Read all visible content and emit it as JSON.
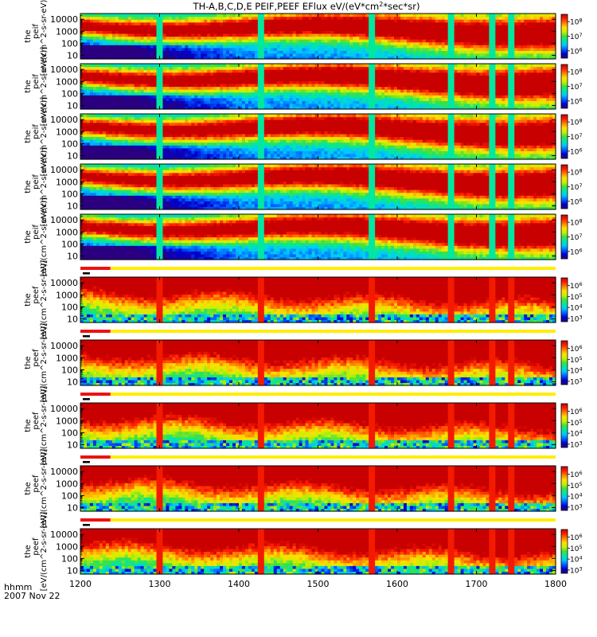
{
  "chart_data": {
    "type": "heatmap",
    "title": "TH-A,B,C,D,E  PEIF,PEEF  EFlux  eV/(eV*cm",
    "title_sup": "2",
    "title_tail": "*sec*sr)",
    "x": {
      "min": 1200,
      "max": 1800,
      "ticks": [
        1200,
        1300,
        1400,
        1500,
        1600,
        1700,
        1800
      ],
      "tick_labels": [
        "1200",
        "1300",
        "1400",
        "1500",
        "1600",
        "1700",
        "1800"
      ],
      "footer_label": "hhmm",
      "date_label": "2007 Nov 22"
    },
    "y": {
      "scale": "log",
      "range": [
        5,
        30000
      ],
      "ticks": [
        10,
        100,
        1000,
        10000
      ],
      "tick_labels": [
        "10",
        "100",
        "1000",
        "10000"
      ]
    },
    "panels": [
      {
        "species": "ion",
        "ylabel_line1": "the",
        "ylabel_line2": "peif",
        "ylabel_units": "[eV/(cm^2-s-sr-eV)]",
        "colorbar": {
          "exponents": [
            "8",
            "7",
            "6"
          ],
          "low_exp": 5.5,
          "high_exp": 8.5
        }
      },
      {
        "species": "ion",
        "ylabel_line1": "the",
        "ylabel_line2": "peif",
        "ylabel_units": "[eV/(cm^2-s-sr-eV)]",
        "colorbar": {
          "exponents": [
            "8",
            "7",
            "6"
          ],
          "low_exp": 5.5,
          "high_exp": 8.5
        }
      },
      {
        "species": "ion",
        "ylabel_line1": "the",
        "ylabel_line2": "peif",
        "ylabel_units": "[eV/(cm^2-s-sr-eV)]",
        "colorbar": {
          "exponents": [
            "8",
            "7",
            "6"
          ],
          "low_exp": 5.5,
          "high_exp": 8.5
        }
      },
      {
        "species": "ion",
        "ylabel_line1": "the",
        "ylabel_line2": "peif",
        "ylabel_units": "[eV/(cm^2-s-sr-eV)]",
        "colorbar": {
          "exponents": [
            "8",
            "7",
            "6"
          ],
          "low_exp": 5.5,
          "high_exp": 8.5
        }
      },
      {
        "species": "ion",
        "ylabel_line1": "the",
        "ylabel_line2": "peif",
        "ylabel_units": "[eV/(cm^2-s-sr-eV)]",
        "colorbar": {
          "exponents": [
            "8",
            "7",
            "6"
          ],
          "low_exp": 5.5,
          "high_exp": 8.5
        }
      },
      {
        "species": "electron",
        "ylabel_line1": "the",
        "ylabel_line2": "peef",
        "ylabel_units": "[eV/(cm^2-s-sr-eV)]",
        "colorbar": {
          "exponents": [
            "6",
            "5",
            "4",
            "3"
          ],
          "low_exp": 2.7,
          "high_exp": 6.7
        }
      },
      {
        "species": "electron",
        "ylabel_line1": "the",
        "ylabel_line2": "peef",
        "ylabel_units": "[eV/(cm^2-s-sr-eV)]",
        "colorbar": {
          "exponents": [
            "6",
            "5",
            "4",
            "3"
          ],
          "low_exp": 2.7,
          "high_exp": 6.7
        }
      },
      {
        "species": "electron",
        "ylabel_line1": "the",
        "ylabel_line2": "peef",
        "ylabel_units": "[eV/(cm^2-s-sr-eV)]",
        "colorbar": {
          "exponents": [
            "6",
            "5",
            "4",
            "3"
          ],
          "low_exp": 2.7,
          "high_exp": 6.7
        }
      },
      {
        "species": "electron",
        "ylabel_line1": "the",
        "ylabel_line2": "peef",
        "ylabel_units": "[eV/(cm^2-s-sr-eV)]",
        "colorbar": {
          "exponents": [
            "6",
            "5",
            "4",
            "3"
          ],
          "low_exp": 2.7,
          "high_exp": 6.7
        }
      },
      {
        "species": "electron",
        "ylabel_line1": "the",
        "ylabel_line2": "peef",
        "ylabel_units": "[eV/(cm^2-s-sr-eV)]",
        "colorbar": {
          "exponents": [
            "6",
            "5",
            "4",
            "3"
          ],
          "low_exp": 2.7,
          "high_exp": 6.7
        }
      }
    ],
    "mode_bars": {
      "red_start": 1200,
      "red_end": 1238,
      "black_start": 1203,
      "black_end": 1212,
      "yellow_start": 1238,
      "yellow_end": 1800
    },
    "data_gaps": [
      1300,
      1428,
      1567,
      1667,
      1721,
      1743
    ],
    "colors": {
      "spectrum": [
        "#2a0080",
        "#0000d0",
        "#0060ff",
        "#00c8ff",
        "#00e8a0",
        "#40e040",
        "#c8f000",
        "#ffe000",
        "#ff8000",
        "#ff2000",
        "#c80000"
      ]
    }
  }
}
